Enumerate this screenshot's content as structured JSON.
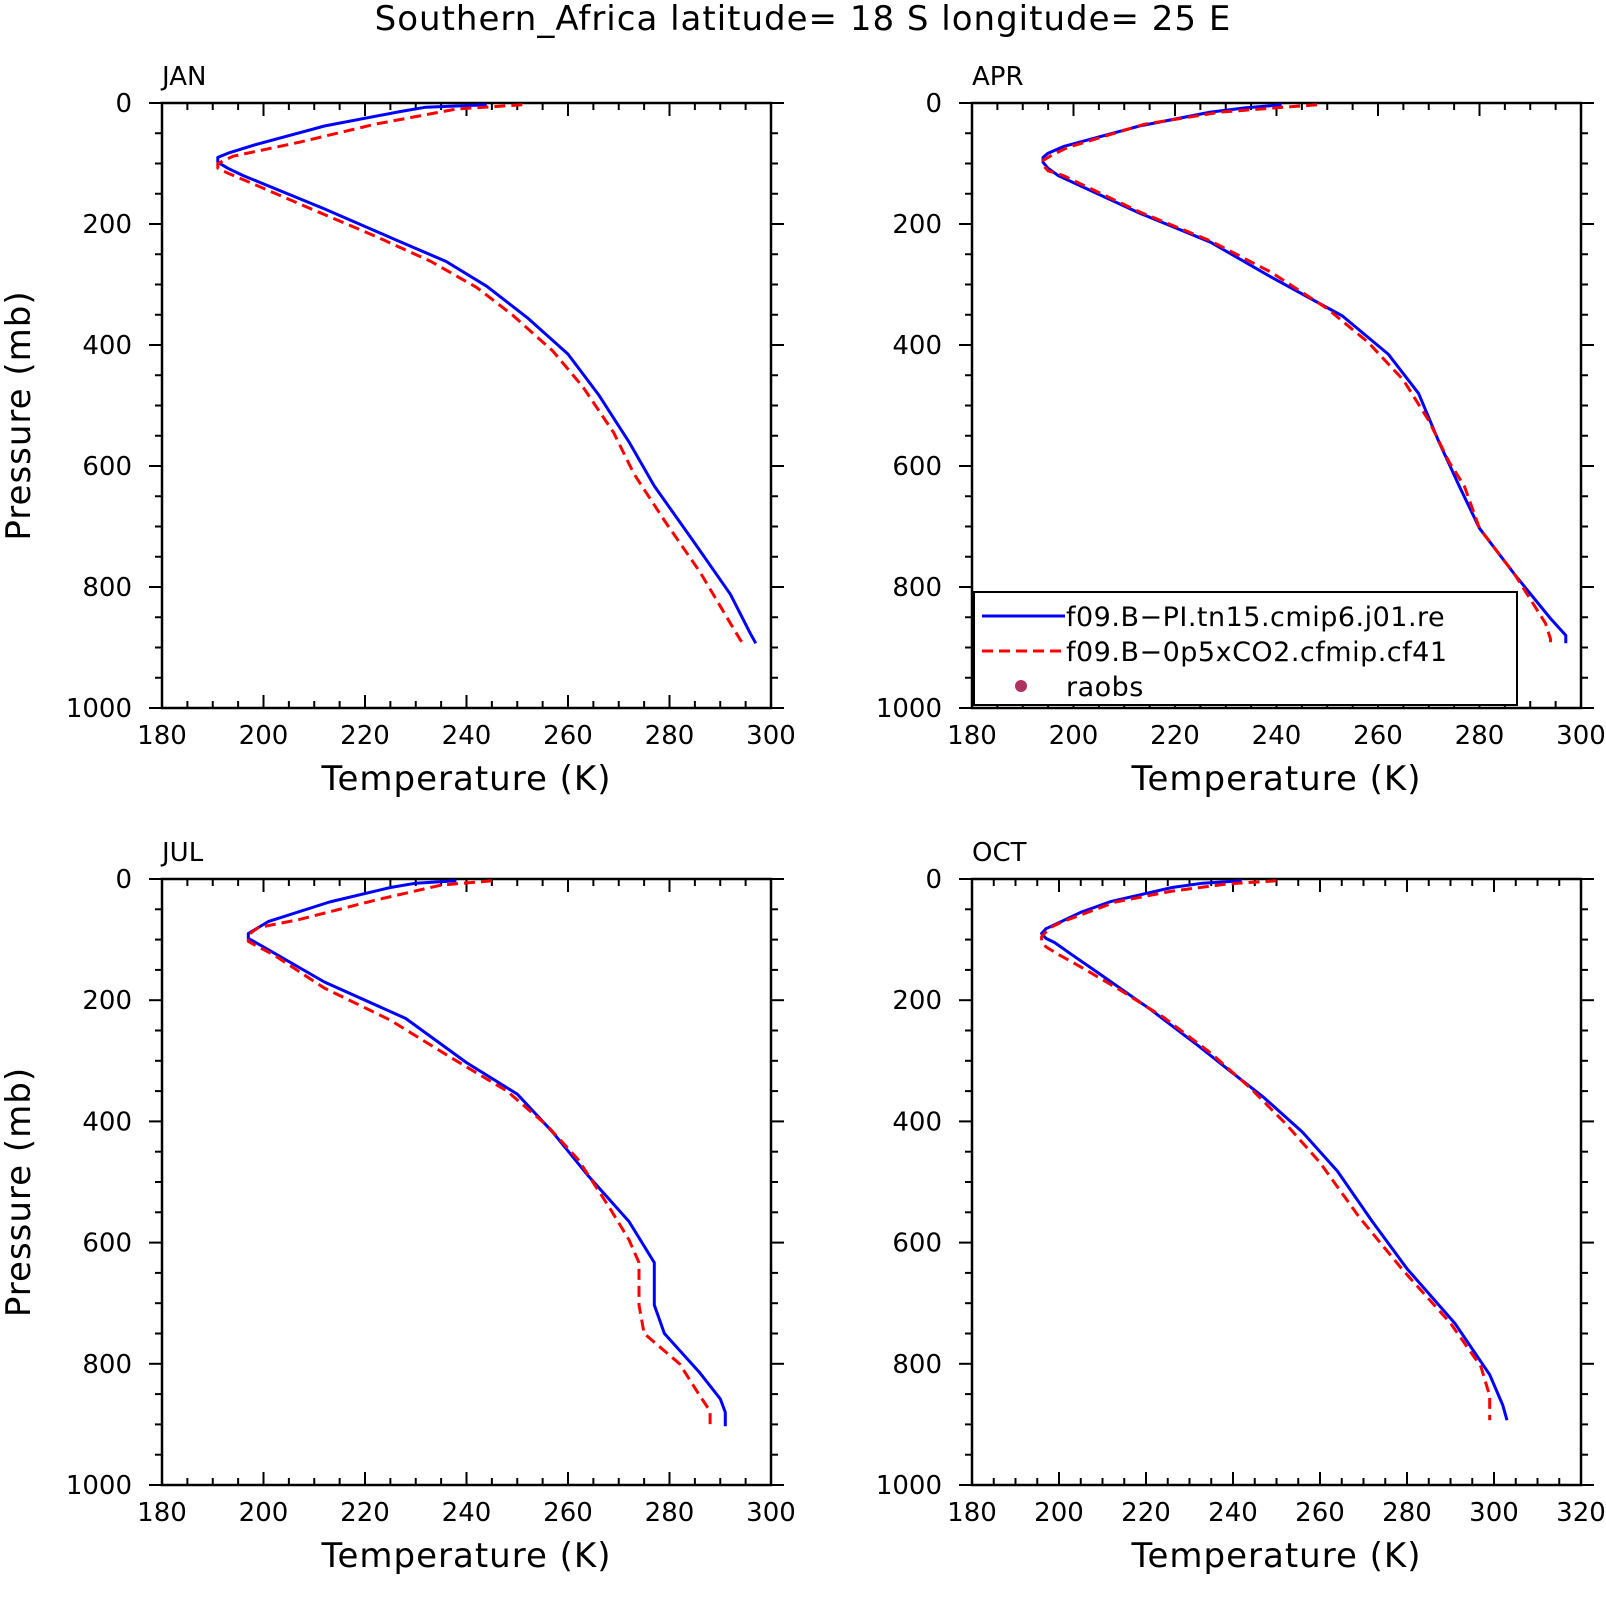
{
  "figure": {
    "title": "Southern_Africa  latitude= 18 S longitude= 25 E"
  },
  "colors": {
    "series1": "#0000ff",
    "series2": "#ff0000",
    "raobs": "#b03060",
    "axis": "#000000",
    "background": "#ffffff"
  },
  "legend": {
    "placement": "bottom of APR panel",
    "entries": [
      {
        "label": "f09.B−PI.tn15.cmip6.j01.re",
        "style": "solid",
        "color": "#0000ff"
      },
      {
        "label": "f09.B−0p5xCO2.cfmip.cf41",
        "style": "dashed",
        "color": "#ff0000"
      },
      {
        "label": "raobs",
        "style": "dot",
        "color": "#b03060"
      }
    ]
  },
  "chart_data": [
    {
      "type": "line",
      "panel": "JAN",
      "xlabel": "Temperature (K)",
      "ylabel": "Pressure (mb)",
      "xlim": [
        180,
        300
      ],
      "ylim": [
        1000,
        0
      ],
      "xticks": [
        "180",
        "200",
        "220",
        "240",
        "260",
        "280",
        "300"
      ],
      "yticks": [
        "0",
        "200",
        "400",
        "600",
        "800",
        "1000"
      ],
      "series": [
        {
          "name": "f09.B−PI.tn15.cmip6.j01.re",
          "points": [
            [
              244,
              3
            ],
            [
              232,
              7
            ],
            [
              227,
              14
            ],
            [
              212,
              38
            ],
            [
              198,
              70
            ],
            [
              193,
              83
            ],
            [
              191,
              90
            ],
            [
              191,
              98
            ],
            [
              193,
              108
            ],
            [
              196,
              120
            ],
            [
              212,
              175
            ],
            [
              226,
              226
            ],
            [
              236,
              262
            ],
            [
              244,
              303
            ],
            [
              252,
              355
            ],
            [
              260,
              415
            ],
            [
              266,
              482
            ],
            [
              272,
              560
            ],
            [
              277,
              633
            ],
            [
              285,
              728
            ],
            [
              292,
              812
            ],
            [
              296,
              878
            ],
            [
              297,
              893
            ]
          ]
        },
        {
          "name": "f09.B−0p5xCO2.cfmip.cf41",
          "points": [
            [
              251,
              3
            ],
            [
              238,
              10
            ],
            [
              222,
              35
            ],
            [
              207,
              65
            ],
            [
              194,
              88
            ],
            [
              191,
              100
            ],
            [
              191,
              108
            ],
            [
              193,
              116
            ],
            [
              195,
              123
            ],
            [
              208,
              170
            ],
            [
              222,
              220
            ],
            [
              233,
              262
            ],
            [
              242,
              305
            ],
            [
              249,
              350
            ],
            [
              257,
              410
            ],
            [
              263,
              470
            ],
            [
              269,
              545
            ],
            [
              273,
              613
            ],
            [
              279,
              690
            ],
            [
              286,
              775
            ],
            [
              292,
              860
            ],
            [
              294,
              888
            ],
            [
              295,
              896
            ]
          ]
        }
      ]
    },
    {
      "type": "line",
      "panel": "APR",
      "xlabel": "Temperature (K)",
      "ylabel": "",
      "xlim": [
        180,
        300
      ],
      "ylim": [
        1000,
        0
      ],
      "xticks": [
        "180",
        "200",
        "220",
        "240",
        "260",
        "280",
        "300"
      ],
      "yticks": [
        "0",
        "200",
        "400",
        "600",
        "800",
        "1000"
      ],
      "series": [
        {
          "name": "f09.B−PI.tn15.cmip6.j01.re",
          "points": [
            [
              241,
              3
            ],
            [
              234,
              8
            ],
            [
              227,
              15
            ],
            [
              213,
              38
            ],
            [
              198,
              72
            ],
            [
              195,
              83
            ],
            [
              194,
              90
            ],
            [
              194,
              98
            ],
            [
              195,
              108
            ],
            [
              197,
              120
            ],
            [
              213,
              182
            ],
            [
              227,
              230
            ],
            [
              239,
              288
            ],
            [
              253,
              352
            ],
            [
              262,
              415
            ],
            [
              268,
              480
            ],
            [
              272,
              560
            ],
            [
              276,
              633
            ],
            [
              280,
              703
            ],
            [
              287,
              780
            ],
            [
              294,
              852
            ],
            [
              297,
              880
            ],
            [
              297,
              893
            ]
          ]
        },
        {
          "name": "f09.B−0p5xCO2.cfmip.cf41",
          "points": [
            [
              248,
              3
            ],
            [
              240,
              8
            ],
            [
              229,
              15
            ],
            [
              214,
              35
            ],
            [
              199,
              73
            ],
            [
              196,
              85
            ],
            [
              194,
              95
            ],
            [
              194,
              103
            ],
            [
              195,
              112
            ],
            [
              198,
              120
            ],
            [
              213,
              180
            ],
            [
              227,
              228
            ],
            [
              239,
              280
            ],
            [
              250,
              340
            ],
            [
              258,
              395
            ],
            [
              265,
              458
            ],
            [
              270,
              525
            ],
            [
              274,
              593
            ],
            [
              277,
              633
            ],
            [
              280,
              703
            ],
            [
              287,
              780
            ],
            [
              293,
              860
            ],
            [
              294,
              886
            ],
            [
              294,
              896
            ]
          ]
        }
      ]
    },
    {
      "type": "line",
      "panel": "JUL",
      "xlabel": "Temperature (K)",
      "ylabel": "Pressure (mb)",
      "xlim": [
        180,
        300
      ],
      "ylim": [
        1000,
        0
      ],
      "xticks": [
        "180",
        "200",
        "220",
        "240",
        "260",
        "280",
        "300"
      ],
      "yticks": [
        "0",
        "200",
        "400",
        "600",
        "800",
        "1000"
      ],
      "series": [
        {
          "name": "f09.B−PI.tn15.cmip6.j01.re",
          "points": [
            [
              238,
              3
            ],
            [
              230,
              7
            ],
            [
              225,
              14
            ],
            [
              213,
              38
            ],
            [
              201,
              70
            ],
            [
              199,
              80
            ],
            [
              197,
              90
            ],
            [
              197,
              98
            ],
            [
              200,
              112
            ],
            [
              212,
              170
            ],
            [
              228,
              230
            ],
            [
              240,
              303
            ],
            [
              250,
              355
            ],
            [
              257,
              418
            ],
            [
              264,
              490
            ],
            [
              272,
              565
            ],
            [
              277,
              633
            ],
            [
              277,
              703
            ],
            [
              279,
              750
            ],
            [
              286,
              815
            ],
            [
              290,
              858
            ],
            [
              291,
              880
            ],
            [
              291,
              903
            ]
          ]
        },
        {
          "name": "f09.B−0p5xCO2.cfmip.cf41",
          "points": [
            [
              245,
              3
            ],
            [
              235,
              10
            ],
            [
              222,
              35
            ],
            [
              207,
              67
            ],
            [
              199,
              80
            ],
            [
              197,
              92
            ],
            [
              197,
              103
            ],
            [
              199,
              112
            ],
            [
              202,
              125
            ],
            [
              212,
              180
            ],
            [
              225,
              233
            ],
            [
              237,
              295
            ],
            [
              248,
              350
            ],
            [
              256,
              408
            ],
            [
              262,
              463
            ],
            [
              268,
              540
            ],
            [
              272,
              595
            ],
            [
              274,
              633
            ],
            [
              274,
              703
            ],
            [
              275,
              750
            ],
            [
              282,
              800
            ],
            [
              286,
              853
            ],
            [
              288,
              878
            ],
            [
              288,
              900
            ]
          ]
        }
      ]
    },
    {
      "type": "line",
      "panel": "OCT",
      "xlabel": "Temperature (K)",
      "ylabel": "",
      "xlim": [
        180,
        320
      ],
      "ylim": [
        1000,
        0
      ],
      "xticks": [
        "180",
        "200",
        "220",
        "240",
        "260",
        "280",
        "300",
        "320"
      ],
      "yticks": [
        "0",
        "200",
        "400",
        "600",
        "800",
        "1000"
      ],
      "series": [
        {
          "name": "f09.B−PI.tn15.cmip6.j01.re",
          "points": [
            [
              242,
              3
            ],
            [
              233,
              7
            ],
            [
              226,
              14
            ],
            [
              212,
              37
            ],
            [
              205,
              55
            ],
            [
              200,
              72
            ],
            [
              197,
              82
            ],
            [
              196,
              90
            ],
            [
              197,
              98
            ],
            [
              199,
              105
            ],
            [
              203,
              125
            ],
            [
              209,
              155
            ],
            [
              221,
              215
            ],
            [
              232,
              275
            ],
            [
              239,
              315
            ],
            [
              247,
              360
            ],
            [
              256,
              418
            ],
            [
              264,
              482
            ],
            [
              272,
              565
            ],
            [
              280,
              643
            ],
            [
              291,
              733
            ],
            [
              299,
              818
            ],
            [
              302,
              868
            ],
            [
              303,
              893
            ]
          ]
        },
        {
          "name": "f09.B−0p5xCO2.cfmip.cf41",
          "points": [
            [
              250,
              3
            ],
            [
              239,
              8
            ],
            [
              226,
              20
            ],
            [
              213,
              38
            ],
            [
              201,
              70
            ],
            [
              198,
              80
            ],
            [
              196,
              95
            ],
            [
              196,
              103
            ],
            [
              197,
              112
            ],
            [
              200,
              125
            ],
            [
              205,
              145
            ],
            [
              214,
              183
            ],
            [
              224,
              228
            ],
            [
              235,
              288
            ],
            [
              244,
              345
            ],
            [
              252,
              403
            ],
            [
              260,
              468
            ],
            [
              269,
              558
            ],
            [
              279,
              645
            ],
            [
              290,
              733
            ],
            [
              297,
              805
            ],
            [
              299,
              853
            ],
            [
              299,
              893
            ]
          ]
        }
      ]
    }
  ]
}
